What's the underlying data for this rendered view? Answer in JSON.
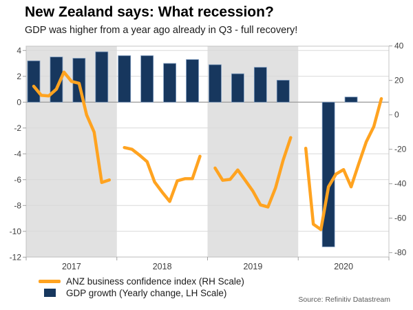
{
  "header": {
    "title": "New Zealand says: What recession?",
    "subtitle": "GDP was higher from a year ago already in Q3 - full recovery!"
  },
  "legend": [
    {
      "label": "ANZ business confidence index (RH Scale)",
      "type": "line",
      "color": "#FFA320"
    },
    {
      "label": "GDP growth (Yearly change, LH Scale)",
      "type": "bar",
      "color": "#17375E"
    }
  ],
  "source": "Source: Refinitiv Datastream",
  "colors": {
    "bar": "#17375E",
    "bar_edge": "#7F9CC0",
    "line": "#FFA320",
    "shaded_band": "#E1E1E1",
    "gridline": "#D9D9D9",
    "zero_line": "#A0A0A0",
    "plot_border": "#C4C4C4",
    "axis_text": "#404040"
  },
  "chart_data": {
    "type": "bar+line combo, dual axis",
    "title": "New Zealand says: What recession?",
    "subtitle": "GDP was higher from a year ago already in Q3 - full recovery!",
    "years": [
      "2017",
      "2018",
      "2019",
      "2020"
    ],
    "shaded_year_indices": [
      0,
      2
    ],
    "left_axis": {
      "label": "GDP growth % (LH Scale)",
      "ticks": [
        4,
        2,
        0,
        -2,
        -4,
        -6,
        -8,
        -10,
        -12
      ]
    },
    "right_axis": {
      "label": "ANZ business confidence index (RH Scale)",
      "ticks": [
        40,
        20,
        0,
        -20,
        -40,
        -60,
        -80
      ]
    },
    "series": [
      {
        "name": "GDP growth (Yearly change, LH Scale)",
        "type": "bar",
        "axis": "left",
        "frequency": "quarterly",
        "values_by_year": [
          [
            3.2,
            3.5,
            3.4,
            3.9
          ],
          [
            3.6,
            3.6,
            3.0,
            3.3
          ],
          [
            2.9,
            2.2,
            2.7,
            1.7
          ],
          [
            null,
            -11.2,
            0.4,
            null
          ]
        ]
      },
      {
        "name": "ANZ business confidence index (RH Scale)",
        "type": "line",
        "axis": "right",
        "frequency": "monthly",
        "note": "null = no survey month (January gaps)",
        "values_by_year": [
          [
            null,
            16.6,
            11.3,
            11.0,
            14.9,
            24.8,
            19.4,
            18.3,
            0.0,
            -10.1,
            -39.3,
            -37.8
          ],
          [
            null,
            -19.0,
            -20.0,
            -23.4,
            -27.2,
            -39.0,
            -44.9,
            -50.3,
            -38.3,
            -37.1,
            -37.1,
            -24.1
          ],
          [
            null,
            -30.9,
            -38.0,
            -37.5,
            -32.0,
            -38.1,
            -44.3,
            -52.3,
            -53.5,
            -42.4,
            -26.4,
            -13.2
          ],
          [
            null,
            -19.4,
            -63.5,
            -66.6,
            -41.8,
            -34.4,
            -31.8,
            -41.8,
            -28.5,
            -15.7,
            -6.9,
            9.4
          ]
        ]
      }
    ]
  }
}
